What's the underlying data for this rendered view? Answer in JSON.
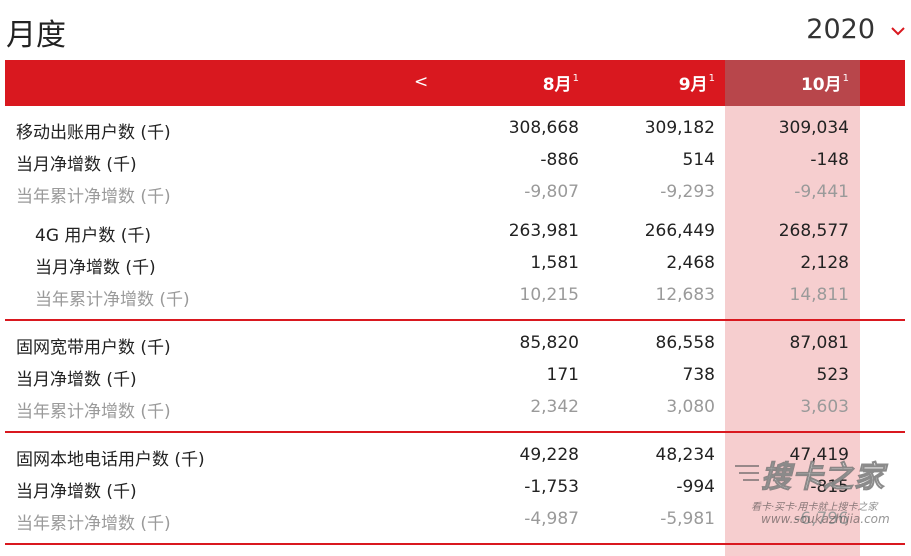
{
  "title": "月度",
  "year": "2020",
  "nav": {
    "prev_label": "<"
  },
  "months": [
    {
      "label": "8月",
      "note": "1"
    },
    {
      "label": "9月",
      "note": "1"
    },
    {
      "label": "10月",
      "note": "1"
    }
  ],
  "colors": {
    "brand_red": "#d9181f",
    "highlight": "#f4c7c8",
    "gray_text": "#9a9a9a"
  },
  "sections": [
    {
      "rows": [
        {
          "label": "移动出账用户数 (千)",
          "values": [
            "308,668",
            "309,182",
            "309,034"
          ]
        },
        {
          "label": "当月净增数 (千)",
          "values": [
            "-886",
            "514",
            "-148"
          ]
        },
        {
          "label": "当年累计净增数 (千)",
          "values": [
            "-9,807",
            "-9,293",
            "-9,441"
          ]
        },
        {
          "label": "4G 用户数 (千)",
          "values": [
            "263,981",
            "266,449",
            "268,577"
          ]
        },
        {
          "label": "当月净增数 (千)",
          "values": [
            "1,581",
            "2,468",
            "2,128"
          ]
        },
        {
          "label": "当年累计净增数 (千)",
          "values": [
            "10,215",
            "12,683",
            "14,811"
          ]
        }
      ]
    },
    {
      "rows": [
        {
          "label": "固网宽带用户数 (千)",
          "values": [
            "85,820",
            "86,558",
            "87,081"
          ]
        },
        {
          "label": "当月净增数 (千)",
          "values": [
            "171",
            "738",
            "523"
          ]
        },
        {
          "label": "当年累计净增数 (千)",
          "values": [
            "2,342",
            "3,080",
            "3,603"
          ]
        }
      ]
    },
    {
      "rows": [
        {
          "label": "固网本地电话用户数 (千)",
          "values": [
            "49,228",
            "48,234",
            "47,419"
          ]
        },
        {
          "label": "当月净增数 (千)",
          "values": [
            "-1,753",
            "-994",
            "-815"
          ]
        },
        {
          "label": "当年累计净增数 (千)",
          "values": [
            "-4,987",
            "-5,981",
            "-6,796"
          ]
        }
      ]
    }
  ],
  "watermark": {
    "logo": "搜卡之家",
    "tagline": "看卡·买卡·用卡就上搜卡之家",
    "url": "www.soukazhijia.com"
  }
}
